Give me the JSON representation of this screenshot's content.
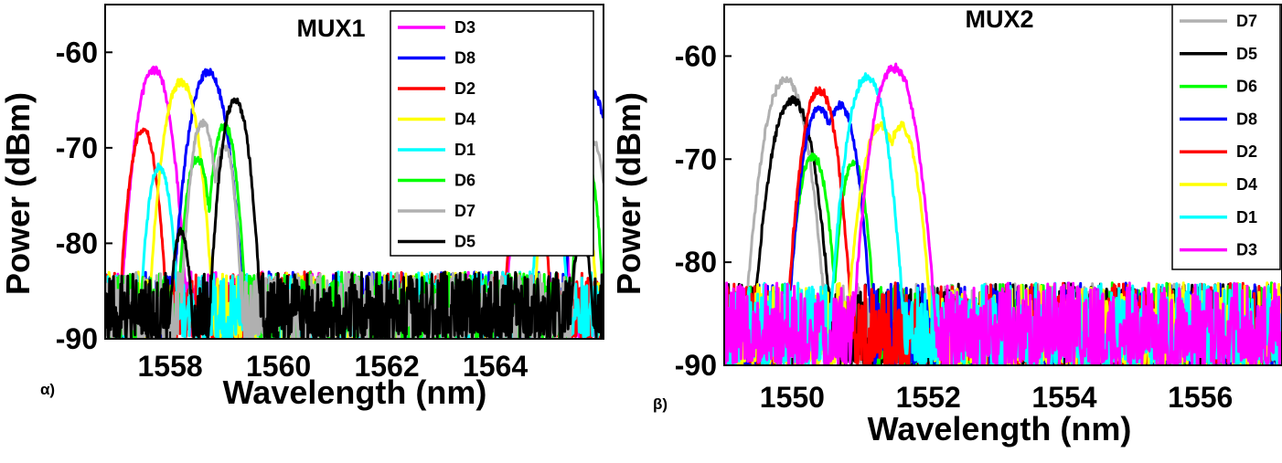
{
  "chart_data": [
    {
      "type": "line",
      "panel_label": "α)",
      "title": "MUX1",
      "xlabel": "Wavelength (nm)",
      "ylabel": "Power (dBm)",
      "xlim": [
        1556.8,
        1566.0
      ],
      "ylim": [
        -90,
        -55
      ],
      "xticks": [
        1558,
        1560,
        1562,
        1564
      ],
      "xtick_labels": [
        "1558",
        "1560",
        "1562",
        "1564"
      ],
      "yticks": [
        -60,
        -70,
        -80,
        -90
      ],
      "ytick_labels": [
        "-60",
        "-70",
        "-80",
        "-90"
      ],
      "legend_position": "top-right",
      "noise_floor": [
        -90,
        -83
      ],
      "series": [
        {
          "name": "D3",
          "color": "#ff00ff",
          "peaks": [
            {
              "center": 1557.7,
              "peak": -62.0,
              "width": 0.55
            },
            {
              "center": 1564.8,
              "peak": -62.3,
              "width": 0.55
            }
          ]
        },
        {
          "name": "D8",
          "color": "#0000ff",
          "peaks": [
            {
              "center": 1558.7,
              "peak": -62.3,
              "width": 0.6
            },
            {
              "center": 1565.8,
              "peak": -64.5,
              "width": 0.5
            }
          ]
        },
        {
          "name": "D2",
          "color": "#ff0000",
          "peaks": [
            {
              "center": 1557.5,
              "peak": -68.3,
              "width": 0.45
            },
            {
              "center": 1564.6,
              "peak": -68.7,
              "width": 0.45
            }
          ]
        },
        {
          "name": "D4",
          "color": "#ffff00",
          "peaks": [
            {
              "center": 1558.2,
              "peak": -63.3,
              "width": 0.55
            },
            {
              "center": 1565.3,
              "peak": -63.8,
              "width": 0.55
            }
          ]
        },
        {
          "name": "D1",
          "color": "#00ffff",
          "peaks": [
            {
              "center": 1557.8,
              "peak": -72.2,
              "width": 0.4
            },
            {
              "center": 1565.0,
              "peak": -72.5,
              "width": 0.4
            }
          ]
        },
        {
          "name": "D6",
          "color": "#00ff00",
          "peaks": [
            {
              "center": 1558.5,
              "peak": -71.3,
              "width": 0.4
            },
            {
              "center": 1559.0,
              "peak": -67.8,
              "width": 0.4
            },
            {
              "center": 1565.7,
              "peak": -72.0,
              "width": 0.35
            }
          ]
        },
        {
          "name": "D7",
          "color": "#b0b0b0",
          "peaks": [
            {
              "center": 1558.6,
              "peak": -67.5,
              "width": 0.4
            },
            {
              "center": 1559.0,
              "peak": -70.0,
              "width": 0.35
            },
            {
              "center": 1565.8,
              "peak": -69.5,
              "width": 0.4
            }
          ]
        },
        {
          "name": "D5",
          "color": "#000000",
          "peaks": [
            {
              "center": 1559.2,
              "peak": -65.2,
              "width": 0.45
            },
            {
              "center": 1558.2,
              "peak": -79.0,
              "width": 0.3
            },
            {
              "center": 1565.6,
              "peak": -79.0,
              "width": 0.3
            }
          ]
        }
      ]
    },
    {
      "type": "line",
      "panel_label": "β)",
      "title": "MUX2",
      "xlabel": "Wavelength (nm)",
      "ylabel": "Power (dBm)",
      "xlim": [
        1549.0,
        1557.2
      ],
      "ylim": [
        -90,
        -55
      ],
      "xticks": [
        1550,
        1552,
        1554,
        1556
      ],
      "xtick_labels": [
        "1550",
        "1552",
        "1554",
        "1556"
      ],
      "yticks": [
        -60,
        -70,
        -80,
        -90
      ],
      "ytick_labels": [
        "-60",
        "-70",
        "-80",
        "-90"
      ],
      "legend_position": "top-right",
      "noise_floor": [
        -90,
        -82
      ],
      "series": [
        {
          "name": "D7",
          "color": "#b0b0b0",
          "peaks": [
            {
              "center": 1549.9,
              "peak": -62.5,
              "width": 0.55
            }
          ]
        },
        {
          "name": "D5",
          "color": "#000000",
          "peaks": [
            {
              "center": 1550.0,
              "peak": -64.5,
              "width": 0.55
            }
          ]
        },
        {
          "name": "D6",
          "color": "#00ff00",
          "peaks": [
            {
              "center": 1550.3,
              "peak": -69.8,
              "width": 0.4
            },
            {
              "center": 1550.9,
              "peak": -70.5,
              "width": 0.35
            }
          ]
        },
        {
          "name": "D8",
          "color": "#0000ff",
          "peaks": [
            {
              "center": 1550.4,
              "peak": -65.2,
              "width": 0.45
            },
            {
              "center": 1550.7,
              "peak": -65.0,
              "width": 0.45
            }
          ]
        },
        {
          "name": "D2",
          "color": "#ff0000",
          "peaks": [
            {
              "center": 1550.4,
              "peak": -63.5,
              "width": 0.45
            }
          ]
        },
        {
          "name": "D4",
          "color": "#ffff00",
          "peaks": [
            {
              "center": 1551.3,
              "peak": -67.0,
              "width": 0.5
            },
            {
              "center": 1551.6,
              "peak": -67.0,
              "width": 0.45
            }
          ]
        },
        {
          "name": "D1",
          "color": "#00ffff",
          "peaks": [
            {
              "center": 1551.1,
              "peak": -62.2,
              "width": 0.5
            }
          ]
        },
        {
          "name": "D3",
          "color": "#ff00ff",
          "peaks": [
            {
              "center": 1551.5,
              "peak": -61.3,
              "width": 0.55
            }
          ]
        }
      ]
    }
  ]
}
